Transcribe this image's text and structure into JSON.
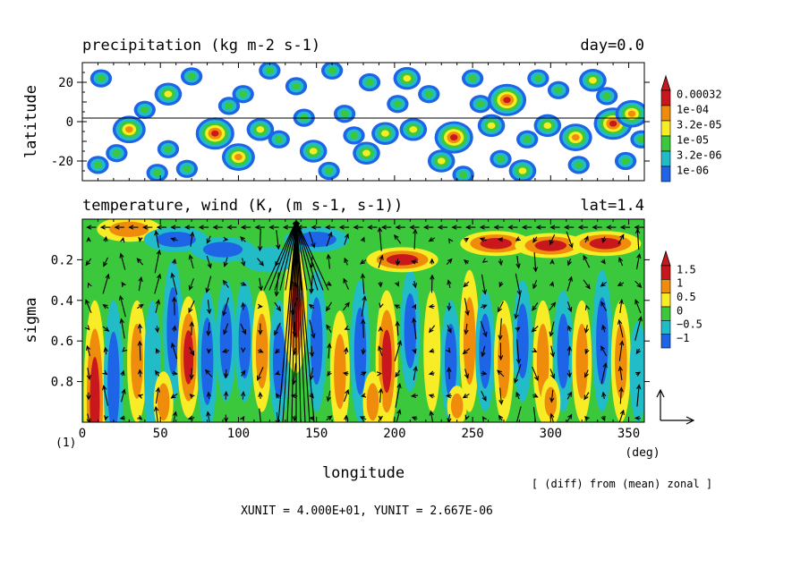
{
  "chart_data": [
    {
      "type": "heatmap",
      "title": "precipitation (kg m-2 s-1)",
      "subtitle_right": "day=0.0",
      "xlabel": "",
      "ylabel": "latitude",
      "xlim": [
        0,
        360
      ],
      "ylim": [
        -30,
        30
      ],
      "yticks": [
        {
          "value": 20,
          "label": "20"
        },
        {
          "value": 0,
          "label": "0"
        },
        {
          "value": -20,
          "label": "-20"
        }
      ],
      "reference_line_y": 0,
      "colorbar": {
        "labels": [
          "0.00032",
          "1e-04",
          "3.2e-05",
          "1e-05",
          "3.2e-06",
          "1e-06"
        ],
        "colors": [
          "#c8181e",
          "#f08c0c",
          "#f8ec26",
          "#3cc83c",
          "#22bcc8",
          "#1e64e6"
        ]
      },
      "blobs": [
        [
          12,
          22,
          1
        ],
        [
          30,
          -4,
          3
        ],
        [
          40,
          6,
          1
        ],
        [
          55,
          14,
          2
        ],
        [
          55,
          -14,
          1
        ],
        [
          70,
          23,
          1
        ],
        [
          85,
          -6,
          4
        ],
        [
          100,
          -18,
          3
        ],
        [
          103,
          14,
          1
        ],
        [
          114,
          -4,
          2
        ],
        [
          126,
          -9,
          1
        ],
        [
          137,
          18,
          1
        ],
        [
          148,
          -15,
          2
        ],
        [
          158,
          -25,
          1
        ],
        [
          168,
          4,
          1
        ],
        [
          182,
          -16,
          2
        ],
        [
          184,
          20,
          1
        ],
        [
          194,
          -6,
          2
        ],
        [
          208,
          22,
          2
        ],
        [
          212,
          -4,
          2
        ],
        [
          230,
          -20,
          2
        ],
        [
          238,
          -8,
          4
        ],
        [
          250,
          22,
          1
        ],
        [
          262,
          -2,
          2
        ],
        [
          268,
          -19,
          1
        ],
        [
          272,
          11,
          4
        ],
        [
          282,
          -25,
          2
        ],
        [
          292,
          22,
          1
        ],
        [
          298,
          -2,
          2
        ],
        [
          305,
          16,
          1
        ],
        [
          316,
          -8,
          3
        ],
        [
          327,
          21,
          2
        ],
        [
          340,
          -1,
          4
        ],
        [
          348,
          -20,
          1
        ],
        [
          352,
          4,
          3
        ],
        [
          358,
          -9,
          1
        ],
        [
          22,
          -16,
          1
        ],
        [
          67,
          -24,
          1
        ],
        [
          94,
          8,
          1
        ],
        [
          142,
          2,
          1
        ],
        [
          174,
          -7,
          1
        ],
        [
          202,
          9,
          1
        ],
        [
          255,
          9,
          1
        ],
        [
          318,
          -22,
          1
        ],
        [
          10,
          -22,
          1
        ],
        [
          48,
          -26,
          1
        ],
        [
          120,
          26,
          1
        ],
        [
          160,
          26,
          1
        ],
        [
          222,
          14,
          1
        ],
        [
          244,
          -27,
          1
        ],
        [
          336,
          13,
          1
        ],
        [
          285,
          -9,
          1
        ]
      ]
    },
    {
      "type": "heatmap",
      "title": "temperature, wind (K, (m s-1, s-1))",
      "subtitle_right": "lat=1.4",
      "xlabel": "longitude",
      "ylabel": "sigma",
      "xlim": [
        0,
        360
      ],
      "ylim": [
        1.0,
        0.0
      ],
      "xticks": [
        {
          "value": 0,
          "label": "0"
        },
        {
          "value": 50,
          "label": "50"
        },
        {
          "value": 100,
          "label": "100"
        },
        {
          "value": 150,
          "label": "150"
        },
        {
          "value": 200,
          "label": "200"
        },
        {
          "value": 250,
          "label": "250"
        },
        {
          "value": 300,
          "label": "300"
        },
        {
          "value": 350,
          "label": "350"
        }
      ],
      "yticks": [
        {
          "value": 0.2,
          "label": "0.2"
        },
        {
          "value": 0.4,
          "label": "0.4"
        },
        {
          "value": 0.6,
          "label": "0.6"
        },
        {
          "value": 0.8,
          "label": "0.8"
        }
      ],
      "x_unit_label": "(deg)",
      "panel_index_label": "(1)",
      "colorbar": {
        "labels": [
          "1.5",
          "1",
          "0.5",
          "0",
          "−0.5",
          "−1"
        ],
        "colors": [
          "#c8181e",
          "#f08c0c",
          "#f8ec26",
          "#3cc83c",
          "#22bcc8",
          "#1e64e6"
        ]
      },
      "vertical_features": [
        [
          8,
          0.9,
          0.5,
          3
        ],
        [
          20,
          0.8,
          0.4,
          -2
        ],
        [
          35,
          0.7,
          0.3,
          2
        ],
        [
          45,
          0.75,
          0.35,
          -1
        ],
        [
          58,
          0.55,
          0.35,
          -2
        ],
        [
          68,
          0.68,
          0.3,
          3
        ],
        [
          80,
          0.7,
          0.35,
          -2
        ],
        [
          92,
          0.6,
          0.3,
          -2
        ],
        [
          104,
          0.6,
          0.3,
          -2
        ],
        [
          115,
          0.65,
          0.3,
          2
        ],
        [
          126,
          0.7,
          0.3,
          -2
        ],
        [
          136,
          0.45,
          0.3,
          3
        ],
        [
          150,
          0.6,
          0.35,
          -2
        ],
        [
          165,
          0.75,
          0.3,
          2
        ],
        [
          178,
          0.65,
          0.35,
          -2
        ],
        [
          195,
          0.7,
          0.35,
          3
        ],
        [
          210,
          0.55,
          0.3,
          -2
        ],
        [
          224,
          0.65,
          0.3,
          1
        ],
        [
          236,
          0.7,
          0.3,
          -2
        ],
        [
          248,
          0.6,
          0.35,
          2
        ],
        [
          258,
          0.65,
          0.3,
          -2
        ],
        [
          270,
          0.7,
          0.3,
          2
        ],
        [
          282,
          0.6,
          0.3,
          -2
        ],
        [
          295,
          0.7,
          0.3,
          2
        ],
        [
          308,
          0.65,
          0.3,
          -2
        ],
        [
          320,
          0.7,
          0.3,
          2
        ],
        [
          333,
          0.6,
          0.35,
          -2
        ],
        [
          345,
          0.7,
          0.3,
          2
        ],
        [
          356,
          0.75,
          0.25,
          -1
        ],
        [
          52,
          0.9,
          0.15,
          2
        ],
        [
          186,
          0.9,
          0.15,
          2
        ],
        [
          240,
          0.92,
          0.1,
          2
        ],
        [
          300,
          0.9,
          0.12,
          2
        ]
      ],
      "upper_features": [
        [
          30,
          0.05,
          2
        ],
        [
          60,
          0.1,
          -2
        ],
        [
          90,
          0.15,
          -2
        ],
        [
          150,
          0.1,
          -2
        ],
        [
          205,
          0.2,
          3
        ],
        [
          265,
          0.12,
          3
        ],
        [
          300,
          0.13,
          3
        ],
        [
          335,
          0.12,
          3
        ],
        [
          120,
          0.2,
          -1
        ]
      ],
      "wind_reference": {
        "xunit": "XUNIT = 4.000E+01",
        "yunit": "YUNIT = 2.667E-06"
      },
      "jet_longitude": 137
    }
  ],
  "labels": {
    "top_title": "precipitation (kg m-2 s-1)",
    "top_right": "day=0.0",
    "top_ylabel": "latitude",
    "bottom_title": "temperature, wind (K, (m s-1, s-1))",
    "bottom_right": "lat=1.4",
    "bottom_ylabel": "sigma",
    "xlabel": "longitude",
    "x_unit": "(deg)",
    "panel_index": "(1)",
    "diff_note": "[ (diff) from (mean) zonal ]",
    "unit_line": "XUNIT = 4.000E+01, YUNIT = 2.667E-06"
  }
}
